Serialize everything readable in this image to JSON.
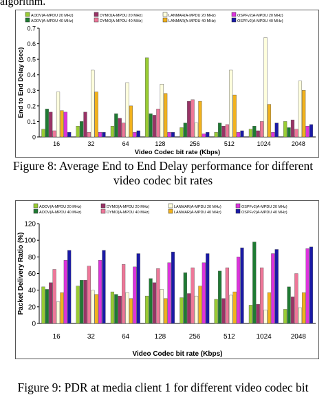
{
  "top_text": "algorithm.",
  "captions": {
    "fig8": "Figure 8: Average End to End Delay performance for different video codec bit rates",
    "fig9": "Figure 9: PDR at media client 1 for different video codec bit"
  },
  "chart_data": [
    {
      "type": "bar",
      "title": "",
      "xlabel": "Video Codec bit rate (Kbps)",
      "ylabel": "End to End Delay (sec)",
      "ylim": [
        0,
        0.7
      ],
      "yticks": [
        "0",
        "0.1",
        "0.2",
        "0.3",
        "0.4",
        "0.5",
        "0.6",
        "0.7"
      ],
      "grid": false,
      "legend": "top",
      "categories": [
        "16",
        "32",
        "64",
        "128",
        "256",
        "512",
        "1024",
        "2048"
      ],
      "series": [
        {
          "name": "AODV(A-MPDU 20 MHz)",
          "color": "#99cc33",
          "values": [
            0.05,
            0.07,
            0.07,
            0.51,
            0.06,
            0.03,
            0.05,
            0.1
          ]
        },
        {
          "name": "AODV(A-MPDU 40 MHz)",
          "color": "#1f7a33",
          "values": [
            0.18,
            0.1,
            0.15,
            0.15,
            0.09,
            0.09,
            0.07,
            0.06
          ]
        },
        {
          "name": "DYMO(A-MPDU 20 MHz)",
          "color": "#993366",
          "values": [
            0.16,
            0.16,
            0.12,
            0.14,
            0.23,
            0.07,
            0.04,
            0.11
          ]
        },
        {
          "name": "DYMO(A-MPDU 40 MHz)",
          "color": "#ee7799",
          "values": [
            0.04,
            0.03,
            0.09,
            0.18,
            0.24,
            0.08,
            0.1,
            0.05
          ]
        },
        {
          "name": "LANMAR(A-MPDU 20 MHz)",
          "color": "#ffffdd",
          "values": [
            0.29,
            0.43,
            0.35,
            0.34,
            0.09,
            0.43,
            0.64,
            0.36
          ]
        },
        {
          "name": "LANMAR(A-MPDU 40 MHz)",
          "color": "#f2b21c",
          "values": [
            0.17,
            0.29,
            0.2,
            0.28,
            0.23,
            0.27,
            0.21,
            0.3
          ]
        },
        {
          "name": "OSPFv2(A-MPDU 20 MHz)",
          "color": "#dd33dd",
          "values": [
            0.16,
            0.03,
            0.03,
            0.03,
            0.02,
            0.03,
            0.03,
            0.07
          ]
        },
        {
          "name": "OSPFv2(A-MPDU 40 MHz)",
          "color": "#1a1aa6",
          "values": [
            0.03,
            0.03,
            0.04,
            0.03,
            0.03,
            0.04,
            0.09,
            0.08
          ]
        }
      ]
    },
    {
      "type": "bar",
      "title": "",
      "xlabel": "Video Codec bit rate (Kbps)",
      "ylabel": "Packet Delivery Ratio (%)",
      "ylim": [
        0,
        120
      ],
      "yticks": [
        "0",
        "20",
        "40",
        "60",
        "80",
        "100",
        "120"
      ],
      "grid": false,
      "legend": "top",
      "categories": [
        "16",
        "32",
        "64",
        "128",
        "256",
        "512",
        "1024",
        "2048"
      ],
      "series": [
        {
          "name": "AODV(A-MPDU 20 MHz)",
          "color": "#99cc33",
          "values": [
            44,
            45,
            38,
            33,
            31,
            29,
            22,
            17
          ]
        },
        {
          "name": "AODV(A-MPDU 40 MHz)",
          "color": "#1f7a33",
          "values": [
            41,
            52,
            35,
            54,
            61,
            63,
            98,
            44
          ]
        },
        {
          "name": "DYMO(A-MPDU 20 MHz)",
          "color": "#993366",
          "values": [
            49,
            52,
            33,
            49,
            36,
            30,
            23,
            32
          ]
        },
        {
          "name": "DYMO(A-MPDU 40 MHz)",
          "color": "#ee7799",
          "values": [
            65,
            69,
            71,
            66,
            67,
            67,
            67,
            60
          ]
        },
        {
          "name": "LANMAR(A-MPDU 20 MHz)",
          "color": "#ffffdd",
          "values": [
            26,
            40,
            37,
            41,
            33,
            34,
            16,
            19
          ]
        },
        {
          "name": "LANMAR(A-MPDU 40 MHz)",
          "color": "#f2b21c",
          "values": [
            37,
            35,
            30,
            30,
            45,
            38,
            37,
            37
          ]
        },
        {
          "name": "OSPFv2(A-MPDU 20 MHz)",
          "color": "#dd33dd",
          "values": [
            76,
            76,
            68,
            73,
            73,
            80,
            84,
            90
          ]
        },
        {
          "name": "OSPFv2(A-MPDU 40 MHz)",
          "color": "#1a1aa6",
          "values": [
            88,
            88,
            84,
            86,
            84,
            91,
            89,
            92
          ]
        }
      ]
    }
  ]
}
